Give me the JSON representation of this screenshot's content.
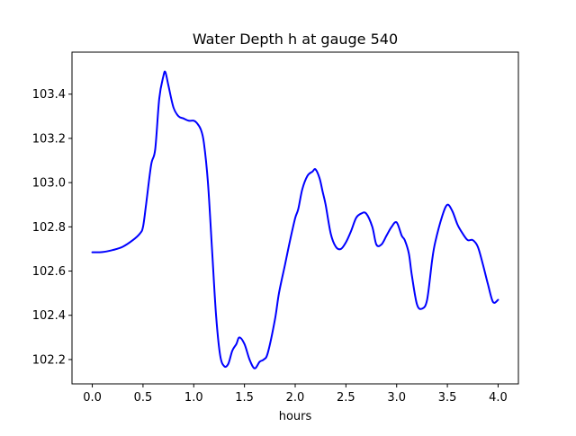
{
  "chart_data": {
    "type": "line",
    "title": "Water Depth h at gauge 540",
    "xlabel": "hours",
    "ylabel": "",
    "xlim": [
      -0.2,
      4.2
    ],
    "ylim": [
      102.09,
      103.59
    ],
    "grid": false,
    "x_ticks": [
      0.0,
      0.5,
      1.0,
      1.5,
      2.0,
      2.5,
      3.0,
      3.5,
      4.0
    ],
    "x_tick_labels": [
      "0.0",
      "0.5",
      "1.0",
      "1.5",
      "2.0",
      "2.5",
      "3.0",
      "3.5",
      "4.0"
    ],
    "y_ticks": [
      102.2,
      102.4,
      102.6,
      102.8,
      103.0,
      103.2,
      103.4
    ],
    "y_tick_labels": [
      "102.2",
      "102.4",
      "102.6",
      "102.8",
      "103.0",
      "103.2",
      "103.4"
    ],
    "series": [
      {
        "color": "#0000ff",
        "x": [
          0.0,
          0.1,
          0.2,
          0.3,
          0.4,
          0.47,
          0.5,
          0.53,
          0.58,
          0.62,
          0.66,
          0.7,
          0.72,
          0.75,
          0.8,
          0.85,
          0.9,
          0.95,
          1.0,
          1.03,
          1.07,
          1.1,
          1.14,
          1.18,
          1.22,
          1.26,
          1.3,
          1.34,
          1.38,
          1.42,
          1.45,
          1.5,
          1.55,
          1.6,
          1.65,
          1.69,
          1.73,
          1.8,
          1.84,
          1.9,
          1.95,
          2.0,
          2.03,
          2.07,
          2.12,
          2.17,
          2.2,
          2.24,
          2.27,
          2.3,
          2.35,
          2.4,
          2.45,
          2.5,
          2.55,
          2.6,
          2.65,
          2.7,
          2.76,
          2.8,
          2.85,
          2.9,
          2.95,
          3.0,
          3.05,
          3.08,
          3.12,
          3.15,
          3.2,
          3.25,
          3.3,
          3.35,
          3.38,
          3.45,
          3.5,
          3.55,
          3.6,
          3.65,
          3.7,
          3.75,
          3.8,
          3.85,
          3.9,
          3.95,
          4.0
        ],
        "y": [
          102.685,
          102.686,
          102.695,
          102.71,
          102.74,
          102.77,
          102.8,
          102.9,
          103.08,
          103.15,
          103.38,
          103.48,
          103.5,
          103.44,
          103.34,
          103.3,
          103.29,
          103.28,
          103.28,
          103.27,
          103.24,
          103.18,
          103.0,
          102.7,
          102.4,
          102.22,
          102.17,
          102.18,
          102.24,
          102.27,
          102.3,
          102.27,
          102.2,
          102.16,
          102.19,
          102.2,
          102.23,
          102.38,
          102.5,
          102.63,
          102.74,
          102.84,
          102.88,
          102.97,
          103.03,
          103.05,
          103.06,
          103.02,
          102.96,
          102.9,
          102.77,
          102.71,
          102.7,
          102.73,
          102.78,
          102.84,
          102.86,
          102.86,
          102.8,
          102.72,
          102.72,
          102.76,
          102.8,
          102.82,
          102.76,
          102.74,
          102.68,
          102.58,
          102.45,
          102.43,
          102.47,
          102.65,
          102.73,
          102.85,
          102.9,
          102.87,
          102.81,
          102.77,
          102.74,
          102.74,
          102.71,
          102.63,
          102.54,
          102.46,
          102.47
        ]
      }
    ]
  }
}
